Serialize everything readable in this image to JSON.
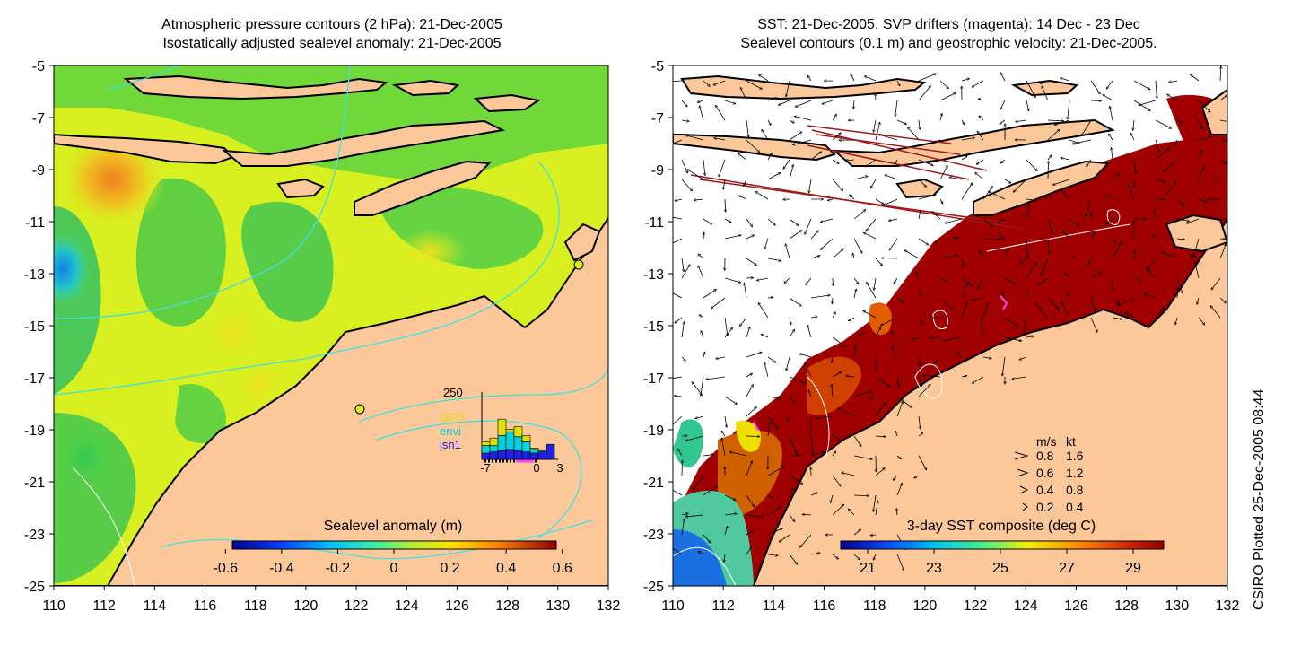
{
  "left_panel": {
    "title_line1": "Atmospheric pressure contours (2 hPa): 21-Dec-2005",
    "title_line2": "Isostatically adjusted sealevel anomaly: 21-Dec-2005",
    "colorbar": {
      "label": "Sealevel anomaly (m)",
      "ticks": [
        "-0.6",
        "-0.4",
        "-0.2",
        "0",
        "0.2",
        "0.4",
        "0.6"
      ]
    },
    "inset_histogram": {
      "y_max_label": "250",
      "x_ticks": [
        "-7",
        "0",
        "3"
      ],
      "legend": [
        {
          "name": "GFO",
          "color": "#e0e000"
        },
        {
          "name": "envi",
          "color": "#00d0e0"
        },
        {
          "name": "jsn1",
          "color": "#2020e0"
        }
      ],
      "bars": [
        {
          "jsn1": 25,
          "envi": 30,
          "gfo": 15
        },
        {
          "jsn1": 30,
          "envi": 25,
          "gfo": 30
        },
        {
          "jsn1": 35,
          "envi": 60,
          "gfo": 65
        },
        {
          "jsn1": 40,
          "envi": 70,
          "gfo": 10
        },
        {
          "jsn1": 35,
          "envi": 55,
          "gfo": 40
        },
        {
          "jsn1": 30,
          "envi": 40,
          "gfo": 25
        },
        {
          "jsn1": 25,
          "envi": 15,
          "gfo": 5
        },
        {
          "jsn1": 30,
          "envi": 5,
          "gfo": 0
        },
        {
          "jsn1": 60,
          "envi": 0,
          "gfo": 0
        }
      ]
    }
  },
  "right_panel": {
    "title_line1": "SST: 21-Dec-2005. SVP drifters (magenta): 14 Dec - 23 Dec",
    "title_line2": "Sealevel contours (0.1 m) and geostrophic velocity: 21-Dec-2005.",
    "colorbar": {
      "label": "3-day SST composite (deg C)",
      "ticks": [
        "21",
        "23",
        "25",
        "27",
        "29"
      ]
    },
    "velocity_legend": {
      "header_ms": "m/s",
      "header_kt": "kt",
      "rows": [
        {
          "ms": "0.8",
          "kt": "1.6"
        },
        {
          "ms": "0.6",
          "kt": "1.2"
        },
        {
          "ms": "0.4",
          "kt": "0.8"
        },
        {
          "ms": "0.2",
          "kt": "0.4"
        }
      ]
    }
  },
  "axes": {
    "lat_ticks": [
      "-5",
      "-7",
      "-9",
      "-11",
      "-13",
      "-15",
      "-17",
      "-19",
      "-21",
      "-23",
      "-25"
    ],
    "lon_ticks": [
      "110",
      "112",
      "114",
      "116",
      "118",
      "120",
      "122",
      "124",
      "126",
      "128",
      "130",
      "132"
    ],
    "lat_range": [
      -25,
      -5
    ],
    "lon_range": [
      110,
      132
    ]
  },
  "side_label": "CSIRO Plotted 25-Dec-2005 08:44",
  "colors": {
    "land": "#fcc89a",
    "ocean_green": "#7ae03a",
    "ocean_yellow": "#d8f020",
    "sst_hot": "#a00000",
    "sst_cloud": "#ffffff",
    "coast": "#000000",
    "contour_cyan": "#40e0e0"
  }
}
